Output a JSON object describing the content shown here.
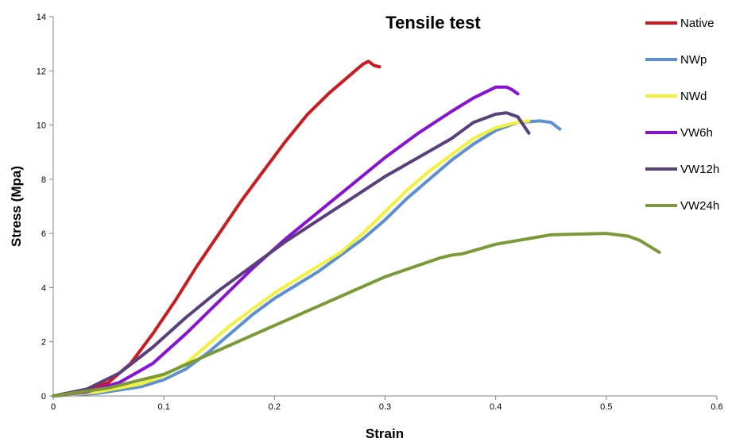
{
  "chart_data": {
    "type": "line",
    "title": "Tensile test",
    "xlabel": "Strain",
    "ylabel": "Stress (Mpa)",
    "xlim": [
      0,
      0.6
    ],
    "ylim": [
      0,
      14
    ],
    "xticks": [
      0,
      0.1,
      0.2,
      0.3,
      0.4,
      0.5,
      0.6
    ],
    "xtick_labels": [
      "0",
      "0.1",
      "0.2",
      "0.3",
      "0.4",
      "0.5",
      "0.6"
    ],
    "yticks": [
      0,
      2,
      4,
      6,
      8,
      10,
      12,
      14
    ],
    "ytick_labels": [
      "0",
      "2",
      "4",
      "6",
      "8",
      "10",
      "12",
      "14"
    ],
    "grid": false,
    "legend_position": "right",
    "series": [
      {
        "name": "Native",
        "color": "#d0191e",
        "x": [
          0,
          0.03,
          0.05,
          0.07,
          0.09,
          0.11,
          0.13,
          0.15,
          0.17,
          0.19,
          0.21,
          0.23,
          0.25,
          0.27,
          0.28,
          0.285,
          0.29,
          0.295
        ],
        "y": [
          0,
          0.2,
          0.5,
          1.2,
          2.3,
          3.5,
          4.8,
          6.0,
          7.2,
          8.3,
          9.4,
          10.4,
          11.2,
          11.9,
          12.25,
          12.35,
          12.2,
          12.15
        ]
      },
      {
        "name": "NWp",
        "color": "#5b8fd6",
        "x": [
          0,
          0.04,
          0.08,
          0.1,
          0.12,
          0.14,
          0.16,
          0.18,
          0.2,
          0.22,
          0.24,
          0.26,
          0.28,
          0.3,
          0.32,
          0.34,
          0.36,
          0.38,
          0.4,
          0.42,
          0.44,
          0.45,
          0.458
        ],
        "y": [
          0,
          0.1,
          0.35,
          0.6,
          1.0,
          1.6,
          2.3,
          3.0,
          3.6,
          4.1,
          4.6,
          5.2,
          5.8,
          6.5,
          7.3,
          8.0,
          8.7,
          9.3,
          9.8,
          10.1,
          10.15,
          10.1,
          9.85
        ]
      },
      {
        "name": "NWd",
        "color": "#f2f23a",
        "x": [
          0,
          0.04,
          0.08,
          0.1,
          0.12,
          0.14,
          0.16,
          0.18,
          0.2,
          0.22,
          0.24,
          0.26,
          0.28,
          0.3,
          0.32,
          0.34,
          0.36,
          0.38,
          0.4,
          0.42,
          0.43
        ],
        "y": [
          0,
          0.15,
          0.45,
          0.75,
          1.2,
          1.9,
          2.6,
          3.2,
          3.8,
          4.3,
          4.8,
          5.3,
          6.0,
          6.8,
          7.6,
          8.3,
          8.9,
          9.5,
          9.9,
          10.1,
          10.15
        ]
      },
      {
        "name": "VW6h",
        "color": "#8a10d9",
        "x": [
          0,
          0.03,
          0.06,
          0.09,
          0.12,
          0.15,
          0.18,
          0.21,
          0.24,
          0.27,
          0.3,
          0.33,
          0.36,
          0.38,
          0.4,
          0.41,
          0.415,
          0.42
        ],
        "y": [
          0,
          0.15,
          0.5,
          1.2,
          2.3,
          3.5,
          4.7,
          5.8,
          6.8,
          7.8,
          8.8,
          9.7,
          10.5,
          11.0,
          11.4,
          11.4,
          11.3,
          11.15
        ]
      },
      {
        "name": "VW12h",
        "color": "#5a3f7e",
        "x": [
          0,
          0.03,
          0.06,
          0.09,
          0.12,
          0.15,
          0.18,
          0.21,
          0.24,
          0.27,
          0.3,
          0.33,
          0.36,
          0.38,
          0.4,
          0.41,
          0.42,
          0.425,
          0.43
        ],
        "y": [
          0,
          0.25,
          0.85,
          1.8,
          2.9,
          3.9,
          4.8,
          5.7,
          6.5,
          7.3,
          8.1,
          8.8,
          9.5,
          10.1,
          10.4,
          10.45,
          10.3,
          10.0,
          9.7
        ]
      },
      {
        "name": "VW24h",
        "color": "#7a9a36",
        "x": [
          0,
          0.05,
          0.1,
          0.15,
          0.2,
          0.25,
          0.3,
          0.35,
          0.36,
          0.37,
          0.4,
          0.45,
          0.5,
          0.52,
          0.53,
          0.54,
          0.548
        ],
        "y": [
          0,
          0.3,
          0.8,
          1.7,
          2.6,
          3.5,
          4.4,
          5.1,
          5.2,
          5.25,
          5.6,
          5.95,
          6.0,
          5.9,
          5.75,
          5.5,
          5.3
        ]
      }
    ]
  }
}
